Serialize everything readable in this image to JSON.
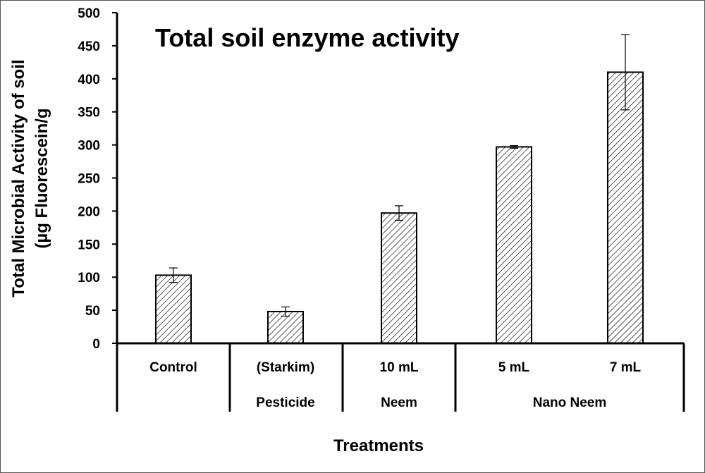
{
  "chart_data": {
    "type": "bar",
    "title": "Total soil enzyme activity",
    "xlabel": "Treatments",
    "ylabel_lines": [
      "Total Microbial Activity of soil",
      "(µg Fluorescein/g"
    ],
    "ylim": [
      0,
      500
    ],
    "yticks": [
      0,
      50,
      100,
      150,
      200,
      250,
      300,
      350,
      400,
      450,
      500
    ],
    "grid": false,
    "bar_fill": "diagonal-hatch",
    "categories": [
      {
        "line1": "Control",
        "line2": ""
      },
      {
        "line1": "(Starkim)",
        "line2": "Pesticide"
      },
      {
        "line1": "10 mL",
        "line2": "Neem"
      },
      {
        "line1": "5 mL",
        "line2": ""
      },
      {
        "line1": "7 mL",
        "line2": ""
      }
    ],
    "group_labels": [
      "Nano Neem"
    ],
    "values": [
      103,
      48,
      197,
      297,
      410
    ],
    "errors": [
      11,
      7,
      11,
      2,
      57
    ]
  },
  "colors": {
    "axis": "#000000",
    "bar_outline": "#000000",
    "hatch": "#000000"
  }
}
